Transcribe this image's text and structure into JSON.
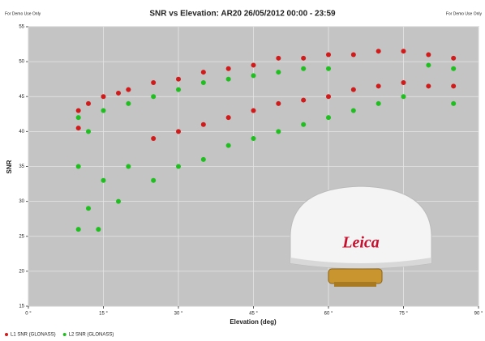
{
  "chart_data": {
    "type": "scatter",
    "title": "SNR vs Elevation: AR20 26/05/2012 00:00 - 23:59",
    "corner_notes": [
      "For Demo Use Only",
      "For Demo Use Only"
    ],
    "x_label": "Elevation (deg)",
    "y_label": "SNR",
    "xlim": [
      0,
      90
    ],
    "xticks": [
      {
        "value": 0,
        "label": "0 °"
      },
      {
        "value": 15,
        "label": "15 °"
      },
      {
        "value": 30,
        "label": "30 °"
      },
      {
        "value": 45,
        "label": "45 °"
      },
      {
        "value": 60,
        "label": "60 °"
      },
      {
        "value": 75,
        "label": "75 °"
      },
      {
        "value": 90,
        "label": "90 °"
      }
    ],
    "ylim": [
      15,
      55
    ],
    "yticks": [
      15,
      20,
      25,
      30,
      35,
      40,
      45,
      50,
      55
    ],
    "grid": true,
    "legend": "bottom-left",
    "antenna_logo": "Leica",
    "series": [
      {
        "name": "L1 SNR (GLONASS)",
        "color": "#d11a1a",
        "x": [
          10,
          10,
          12,
          15,
          18,
          20,
          25,
          30,
          35,
          40,
          45,
          50,
          55,
          60,
          65,
          70,
          75,
          80,
          85,
          25,
          30,
          35,
          40,
          45,
          50,
          55,
          60,
          65,
          70,
          75,
          80,
          85
        ],
        "values": [
          43,
          40.5,
          44,
          45,
          45.5,
          46,
          47,
          47.5,
          48.5,
          49,
          49.5,
          50.5,
          50.5,
          51,
          51,
          51.5,
          51.5,
          51,
          50.5,
          39,
          40,
          41,
          42,
          43,
          44,
          44.5,
          45,
          46,
          46.5,
          47,
          46.5,
          46.5
        ]
      },
      {
        "name": "L2 SNR (GLONASS)",
        "color": "#1fbf1f",
        "x": [
          10,
          10,
          10,
          12,
          12,
          14,
          15,
          15,
          18,
          20,
          20,
          25,
          25,
          30,
          30,
          35,
          35,
          40,
          40,
          45,
          45,
          50,
          50,
          55,
          55,
          60,
          60,
          65,
          70,
          75,
          80,
          85,
          85
        ],
        "values": [
          26,
          35,
          42,
          29,
          40,
          26,
          33,
          43,
          30,
          35,
          44,
          33,
          45,
          35,
          46,
          36,
          47,
          38,
          47.5,
          39,
          48,
          40,
          48.5,
          41,
          49,
          42,
          49,
          43,
          44,
          45,
          49.5,
          44,
          49
        ]
      }
    ]
  }
}
